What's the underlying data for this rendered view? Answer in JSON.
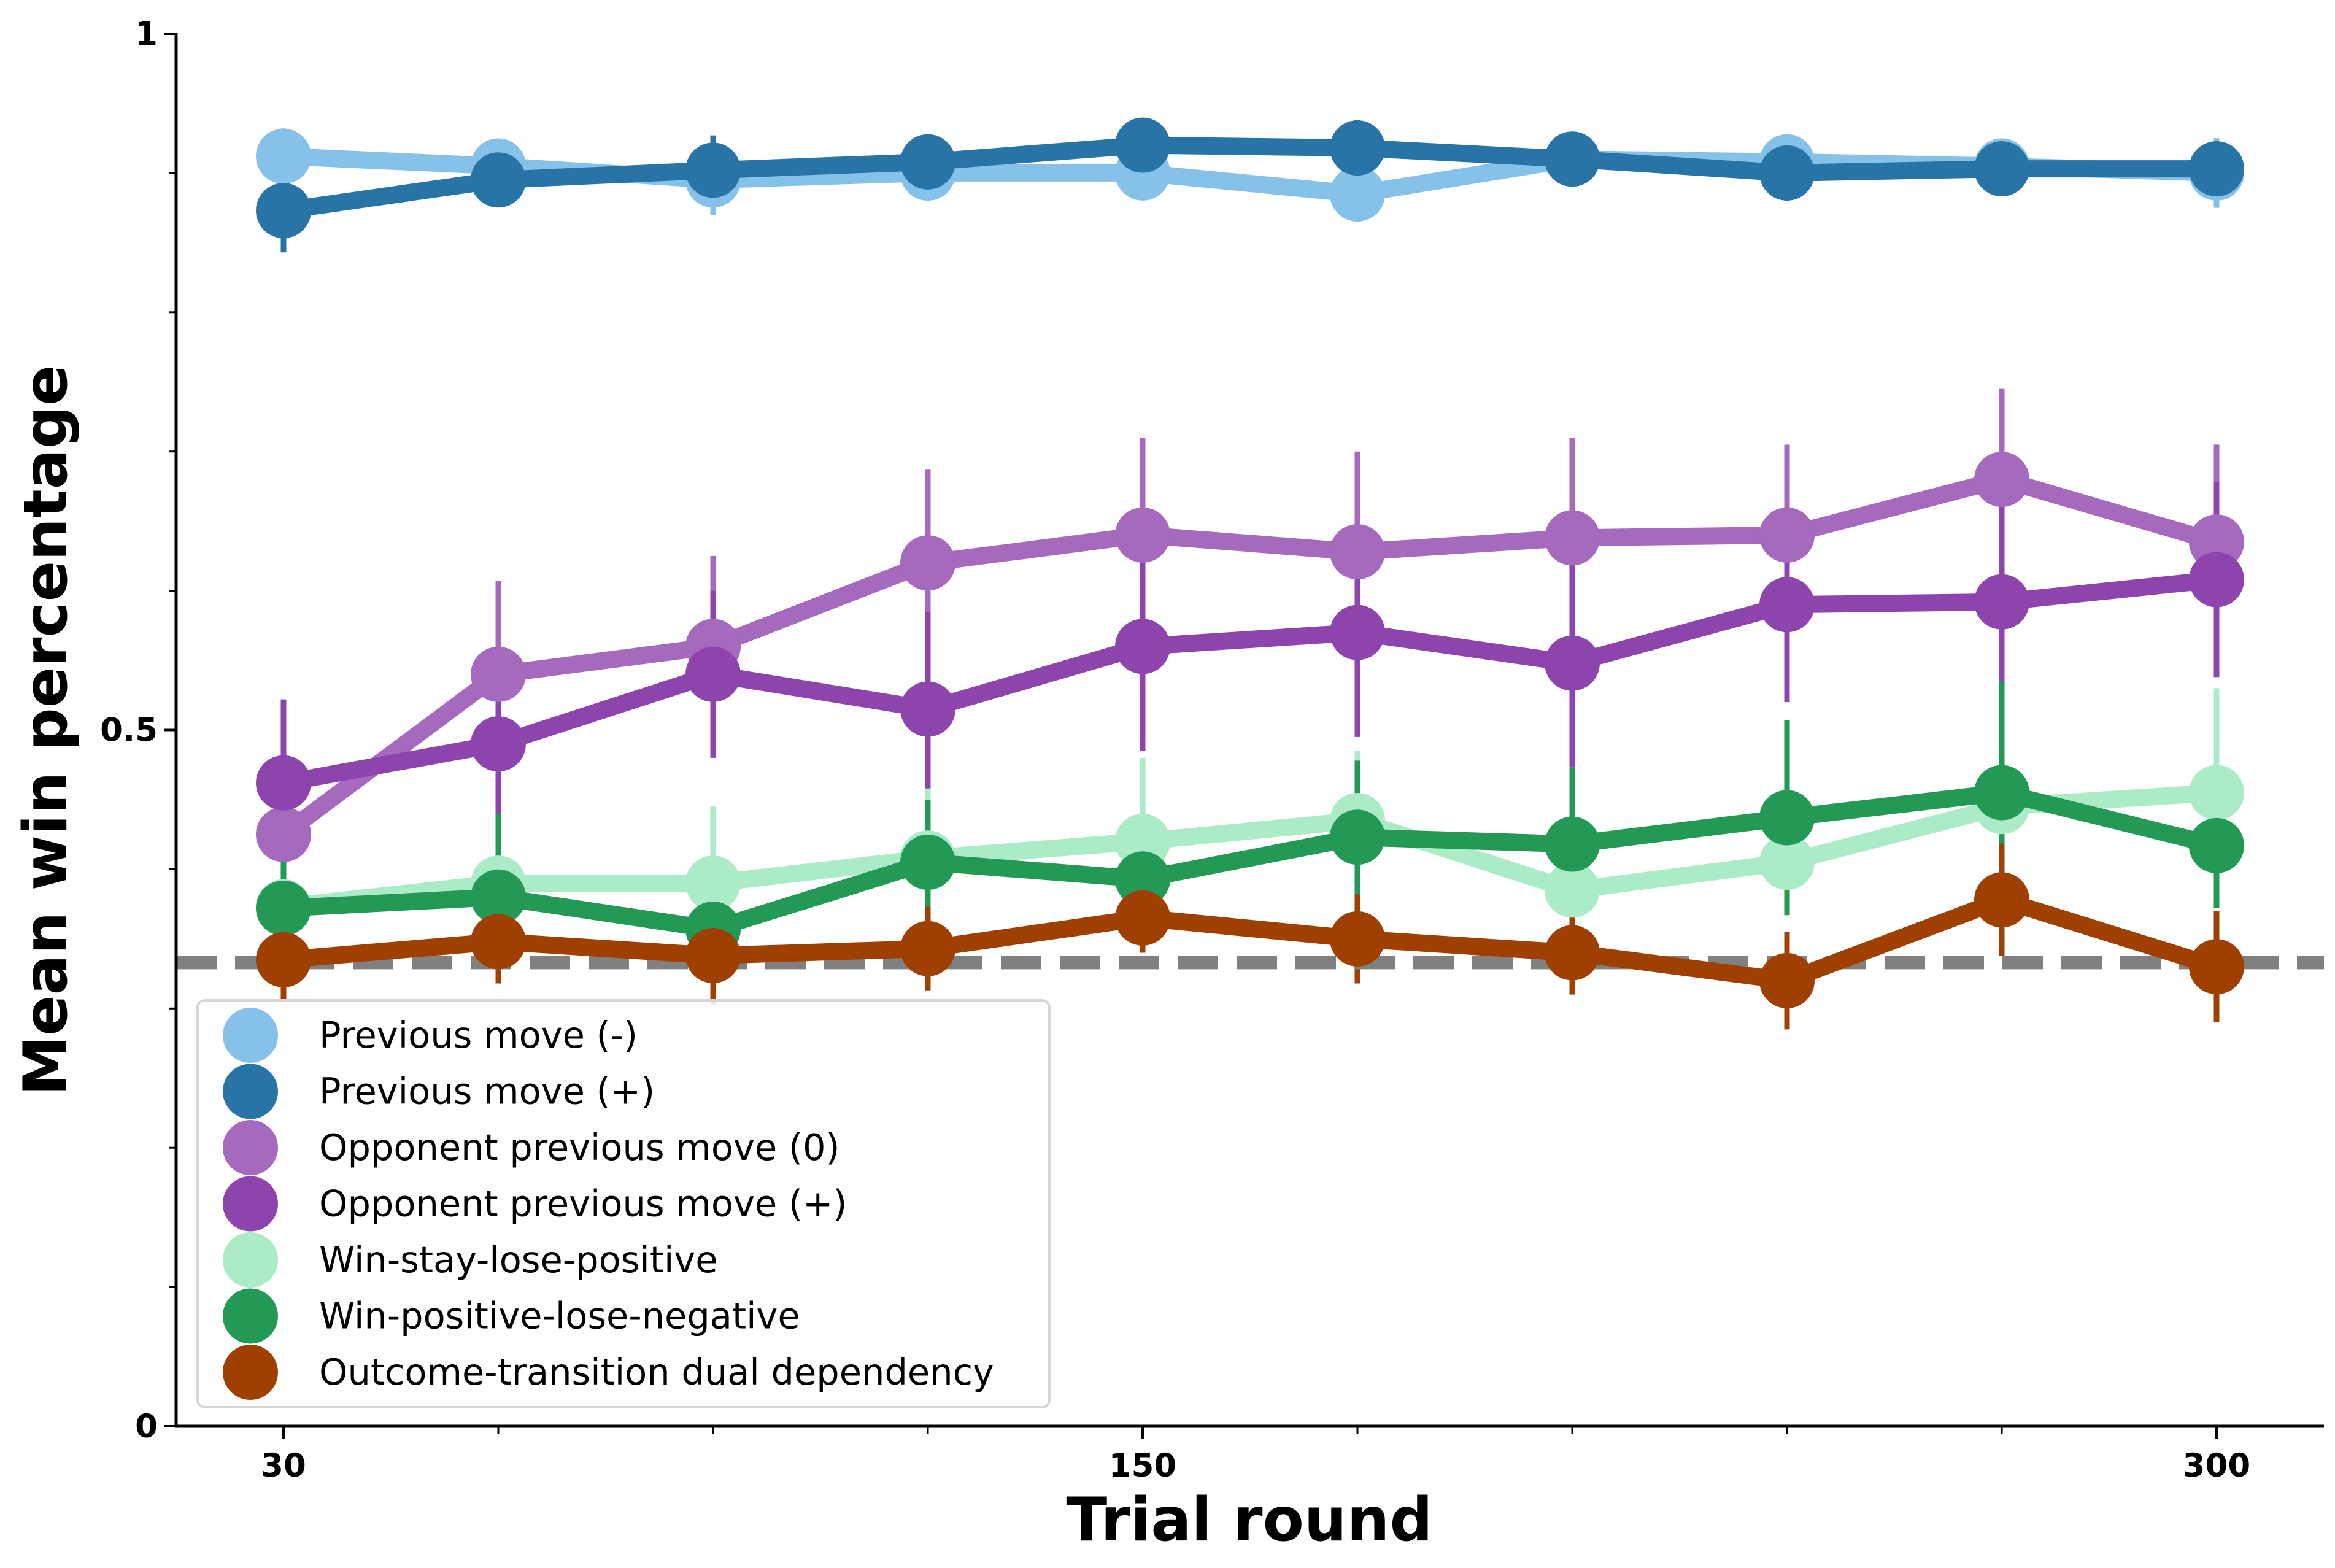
{
  "chart_data": {
    "type": "line",
    "xlabel": "Trial round",
    "ylabel": "Mean win percentage",
    "x": [
      30,
      60,
      90,
      120,
      150,
      180,
      210,
      240,
      270,
      300
    ],
    "xlim": [
      15,
      315
    ],
    "ylim": [
      0,
      1
    ],
    "xticks": [
      {
        "value": 30,
        "label": "30"
      },
      {
        "value": 150,
        "label": "150"
      },
      {
        "value": 300,
        "label": "300"
      }
    ],
    "xminor": [
      60,
      90,
      120,
      180,
      210,
      240,
      270
    ],
    "yticks": [
      {
        "value": 0,
        "label": "0"
      },
      {
        "value": 0.5,
        "label": "0.5"
      },
      {
        "value": 1,
        "label": "1"
      }
    ],
    "yminor": [
      0.1,
      0.2,
      0.3,
      0.4,
      0.6,
      0.7,
      0.8,
      0.9
    ],
    "grid": false,
    "legend_position": "lower-left",
    "reference_line": {
      "y": 0.333,
      "color": "#808080",
      "style": "dashed"
    },
    "series": [
      {
        "name": "Previous move (-)",
        "color": "#85c1e9",
        "values": [
          0.912,
          0.905,
          0.895,
          0.9,
          0.9,
          0.885,
          0.91,
          0.908,
          0.905,
          0.9
        ],
        "errors": [
          0.02,
          0.01,
          0.025,
          0.02,
          0.01,
          0.02,
          0.015,
          0.02,
          0.015,
          0.025
        ]
      },
      {
        "name": "Previous move (+)",
        "color": "#2874a6",
        "values": [
          0.873,
          0.895,
          0.902,
          0.908,
          0.92,
          0.918,
          0.91,
          0.9,
          0.903,
          0.903
        ],
        "errors": [
          0.03,
          0.01,
          0.025,
          0.02,
          0.015,
          0.02,
          0.01,
          0.02,
          0.015,
          0.02
        ]
      },
      {
        "name": "Opponent previous move (0)",
        "color": "#a569bd",
        "values": [
          0.425,
          0.54,
          0.56,
          0.62,
          0.64,
          0.628,
          0.638,
          0.64,
          0.68,
          0.635
        ],
        "errors": [
          0.02,
          0.067,
          0.065,
          0.067,
          0.07,
          0.072,
          0.072,
          0.065,
          0.065,
          0.07
        ]
      },
      {
        "name": "Opponent previous move (+)",
        "color": "#8e44ad",
        "values": [
          0.462,
          0.49,
          0.54,
          0.515,
          0.56,
          0.57,
          0.548,
          0.59,
          0.592,
          0.608
        ],
        "errors": [
          0.06,
          0.06,
          0.06,
          0.07,
          0.075,
          0.075,
          0.075,
          0.07,
          0.08,
          0.07
        ]
      },
      {
        "name": "Win-stay-lose-positive",
        "color": "#abebc6",
        "values": [
          0.373,
          0.39,
          0.39,
          0.408,
          0.42,
          0.435,
          0.385,
          0.405,
          0.445,
          0.455
        ],
        "errors": [
          0.025,
          0.03,
          0.055,
          0.05,
          0.06,
          0.05,
          0.03,
          0.03,
          0.04,
          0.075
        ]
      },
      {
        "name": "Win-positive-lose-negative",
        "color": "#229954",
        "values": [
          0.372,
          0.38,
          0.357,
          0.405,
          0.393,
          0.423,
          0.418,
          0.437,
          0.455,
          0.417
        ],
        "errors": [
          0.04,
          0.06,
          0.05,
          0.045,
          0.045,
          0.055,
          0.055,
          0.07,
          0.08,
          0.045
        ]
      },
      {
        "name": "Outcome-transition dual dependency",
        "color": "#a04000",
        "values": [
          0.335,
          0.348,
          0.338,
          0.343,
          0.365,
          0.35,
          0.34,
          0.32,
          0.378,
          0.33
        ],
        "errors": [
          0.03,
          0.03,
          0.035,
          0.03,
          0.025,
          0.032,
          0.03,
          0.035,
          0.04,
          0.04
        ]
      }
    ]
  }
}
